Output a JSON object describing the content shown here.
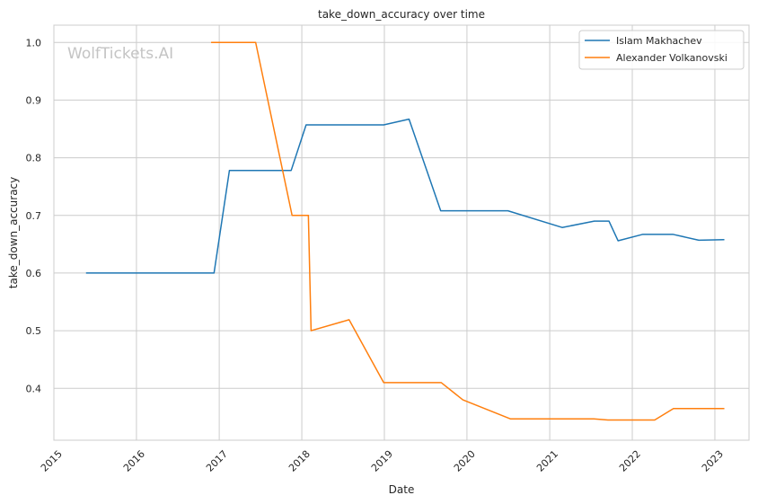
{
  "chart_data": {
    "type": "line",
    "title": "take_down_accuracy over time",
    "xlabel": "Date",
    "ylabel": "take_down_accuracy",
    "watermark": "WolfTickets.AI",
    "x_ticks": [
      "2015",
      "2016",
      "2017",
      "2018",
      "2019",
      "2020",
      "2021",
      "2022",
      "2023"
    ],
    "y_ticks": [
      "0.4",
      "0.5",
      "0.6",
      "0.7",
      "0.8",
      "0.9",
      "1.0"
    ],
    "xlim": [
      "2015-01-01",
      "2023-06-01"
    ],
    "ylim": [
      0.31,
      1.03
    ],
    "grid": true,
    "legend_position": "top-right",
    "series": [
      {
        "name": "Islam Makhachev",
        "color": "#1f77b4",
        "points": [
          [
            "2015-05-23",
            0.6
          ],
          [
            "2016-12-09",
            0.6
          ],
          [
            "2017-02-15",
            0.778
          ],
          [
            "2017-11-15",
            0.778
          ],
          [
            "2018-01-20",
            0.857
          ],
          [
            "2018-12-29",
            0.857
          ],
          [
            "2019-04-20",
            0.867
          ],
          [
            "2019-09-07",
            0.708
          ],
          [
            "2020-06-30",
            0.708
          ],
          [
            "2021-02-25",
            0.679
          ],
          [
            "2021-07-17",
            0.69
          ],
          [
            "2021-09-20",
            0.69
          ],
          [
            "2021-10-30",
            0.656
          ],
          [
            "2022-02-15",
            0.667
          ],
          [
            "2022-07-01",
            0.667
          ],
          [
            "2022-10-22",
            0.657
          ],
          [
            "2023-02-12",
            0.658
          ]
        ]
      },
      {
        "name": "Alexander Volkanovski",
        "color": "#ff7f0e",
        "points": [
          [
            "2016-11-26",
            1.0
          ],
          [
            "2017-06-11",
            1.0
          ],
          [
            "2017-11-19",
            0.7
          ],
          [
            "2018-01-30",
            0.7
          ],
          [
            "2018-02-11",
            0.5
          ],
          [
            "2018-07-29",
            0.519
          ],
          [
            "2018-12-29",
            0.41
          ],
          [
            "2019-09-09",
            0.41
          ],
          [
            "2019-12-14",
            0.38
          ],
          [
            "2020-07-12",
            0.347
          ],
          [
            "2021-07-15",
            0.347
          ],
          [
            "2021-09-15",
            0.345
          ],
          [
            "2022-04-10",
            0.345
          ],
          [
            "2022-07-02",
            0.365
          ],
          [
            "2023-02-12",
            0.365
          ]
        ]
      }
    ]
  }
}
